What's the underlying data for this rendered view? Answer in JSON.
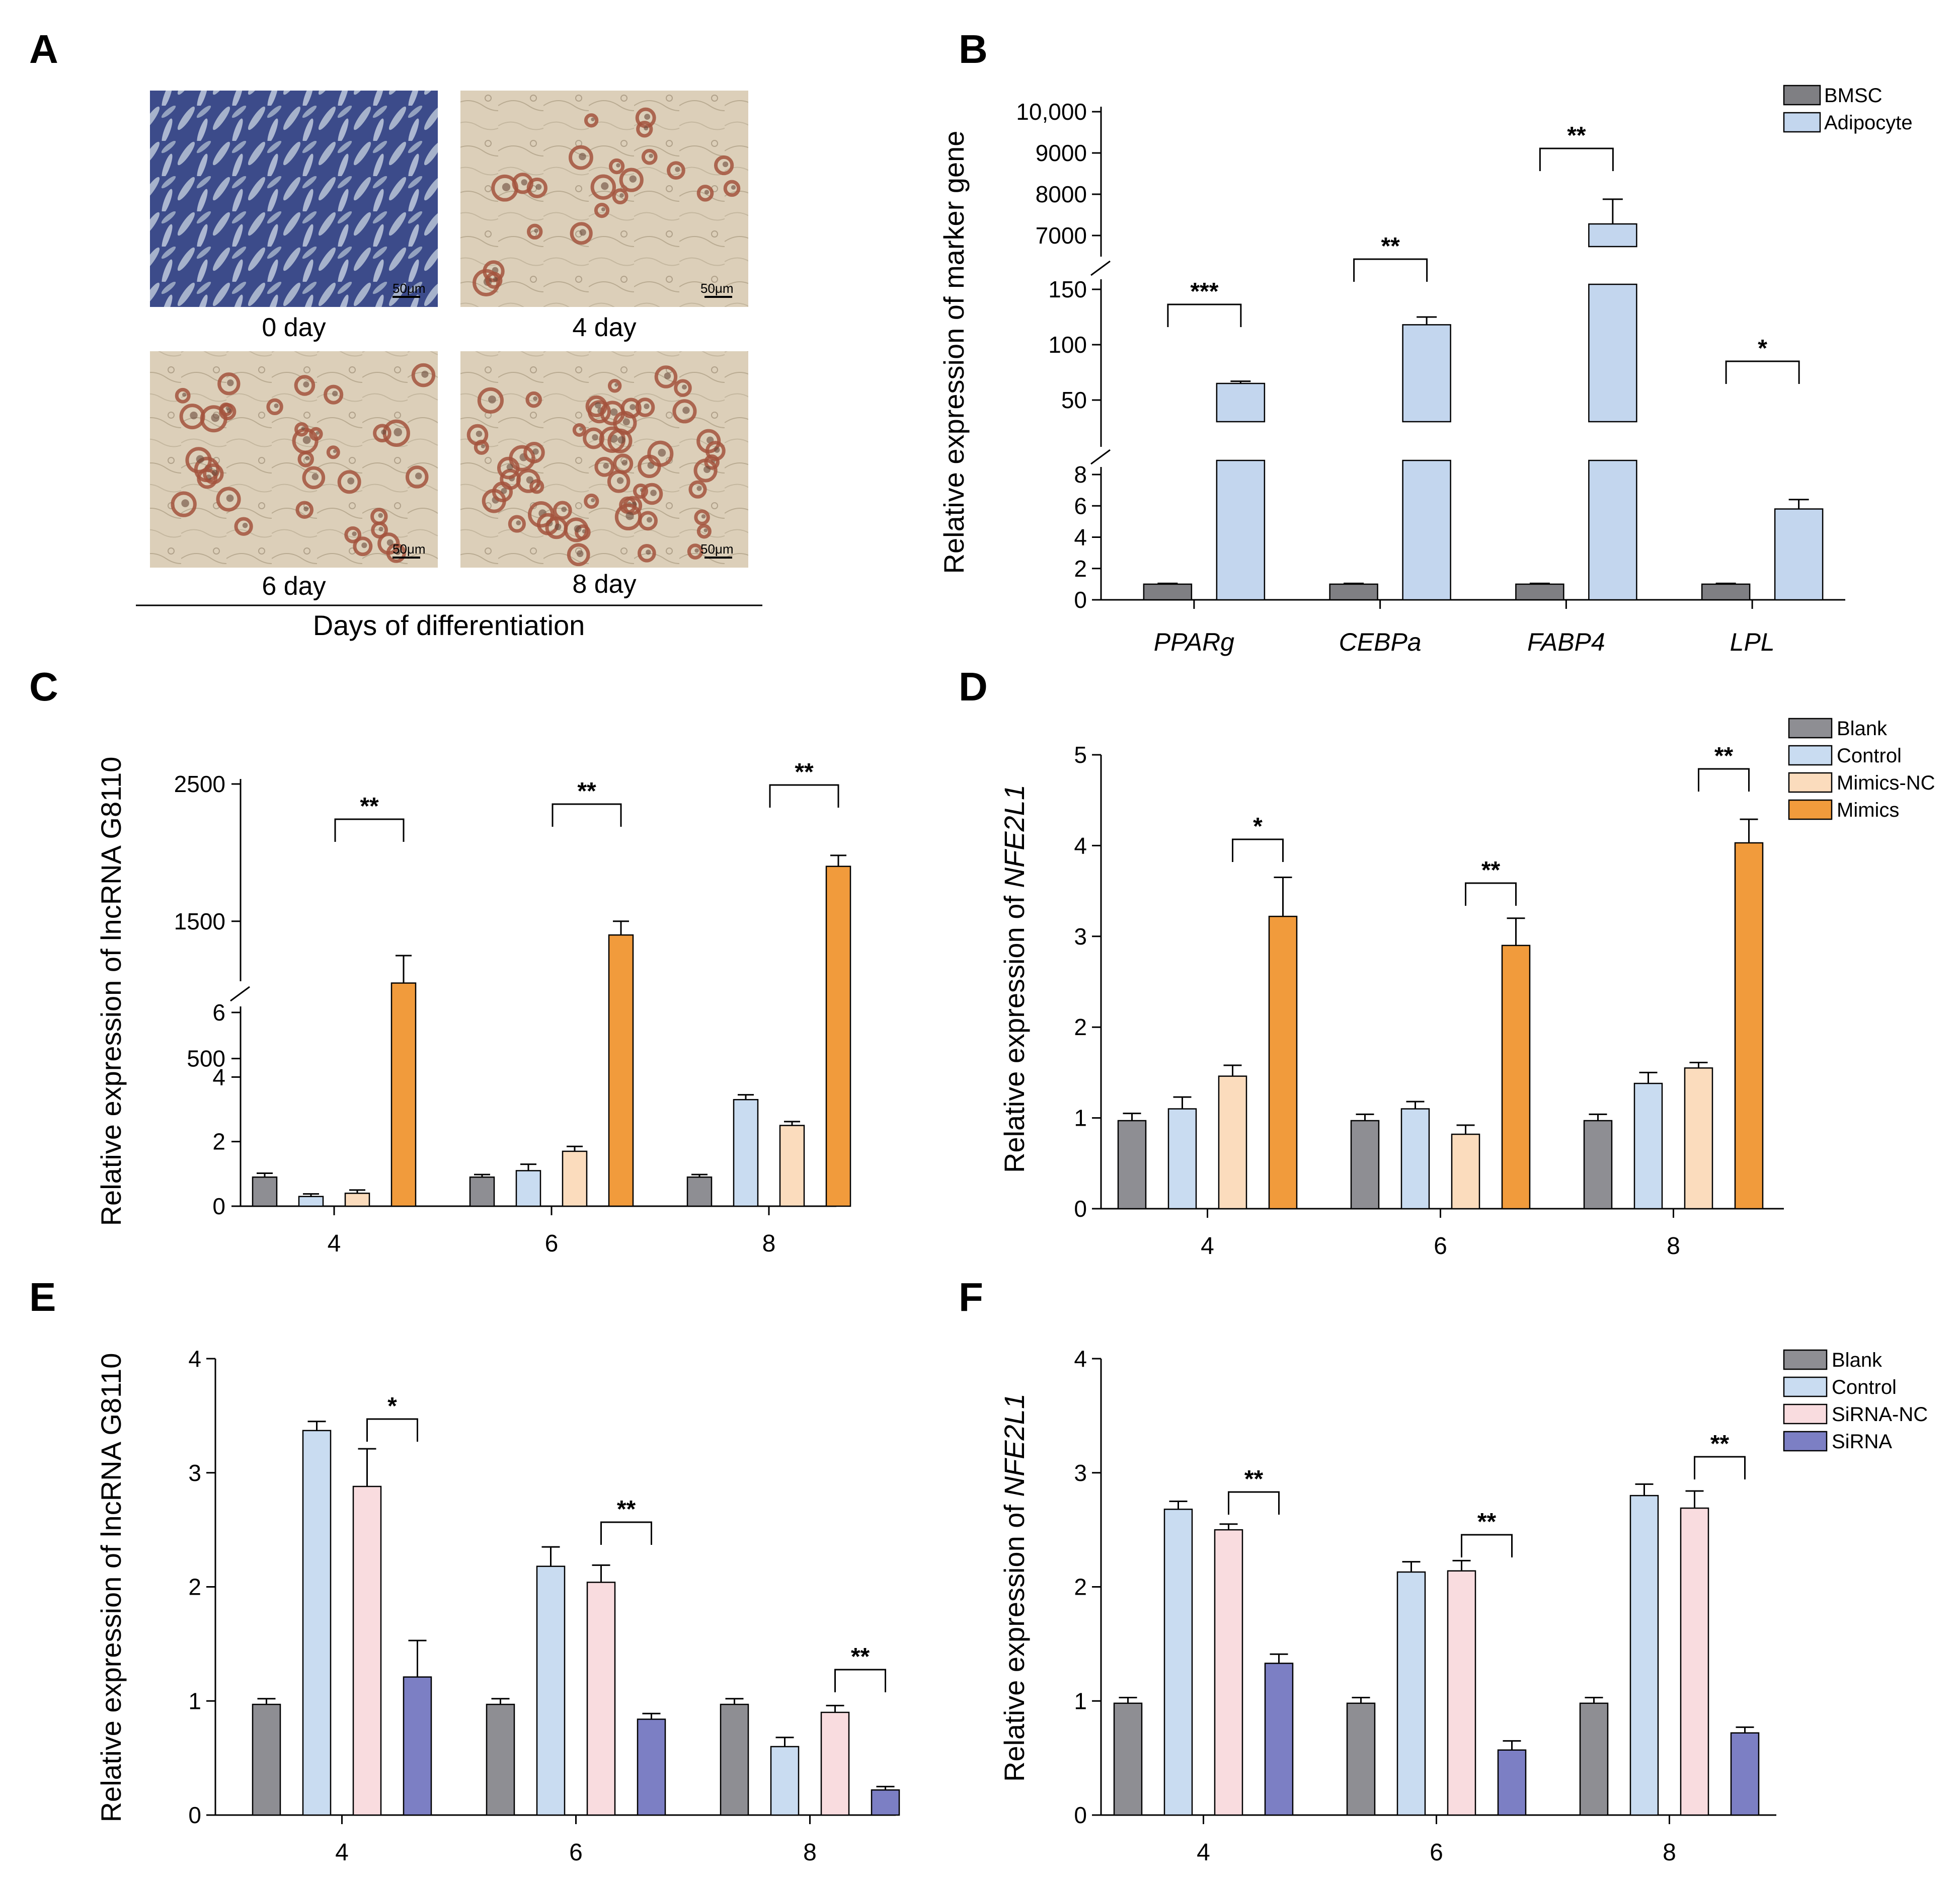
{
  "panel_labels": {
    "A": "A",
    "B": "B",
    "C": "C",
    "D": "D",
    "E": "E",
    "F": "F"
  },
  "colors": {
    "bmsc": "#7f7f83",
    "adipocyte": "#c3d6ee",
    "blank": "#8e8e93",
    "control": "#c9dcf1",
    "mimics_nc": "#fbdcbd",
    "mimics": "#f19b3c",
    "sirna_nc": "#f9dcdf",
    "sirna": "#7c7fc4",
    "micro_0": "#3c4b8a",
    "micro_stain": "#d8cbb4",
    "lipid": "#a3533d"
  },
  "panelA": {
    "images": [
      {
        "caption": "0 day",
        "scale": "50μm"
      },
      {
        "caption": "4 day",
        "scale": "50μm"
      },
      {
        "caption": "6 day",
        "scale": "50μm"
      },
      {
        "caption": "8 day",
        "scale": "50μm"
      }
    ],
    "footer": "Days of differentiation"
  },
  "chart_data": [
    {
      "panel": "B",
      "type": "bar",
      "ylabel": "Relative expression of marker gene",
      "categories": [
        "PPARg",
        "CEBPa",
        "FABP4",
        "LPL"
      ],
      "axis_segments": [
        {
          "range": [
            0,
            8
          ],
          "ticks": [
            "0",
            "2",
            "4",
            "6",
            "8"
          ]
        },
        {
          "range": [
            50,
            150
          ],
          "ticks": [
            "50",
            "100",
            "150"
          ]
        },
        {
          "range": [
            7000,
            10000
          ],
          "ticks": [
            "7000",
            "8000",
            "9000",
            "10,000"
          ]
        }
      ],
      "series": [
        {
          "name": "BMSC",
          "values": [
            1,
            1,
            1,
            1
          ],
          "errors": [
            0.05,
            0.05,
            0.05,
            0.05
          ]
        },
        {
          "name": "Adipocyte",
          "values": [
            65,
            118,
            7280,
            5.8
          ],
          "errors": [
            2,
            7,
            600,
            0.6
          ]
        }
      ],
      "significance": [
        "***",
        "**",
        "**",
        "*"
      ]
    },
    {
      "panel": "C",
      "type": "bar",
      "ylabel": "Relative expression of lncRNA G8110",
      "categories": [
        "4",
        "6",
        "8"
      ],
      "axis_segments": [
        {
          "range": [
            0,
            6
          ],
          "ticks": [
            "0",
            "2",
            "4",
            "6"
          ]
        },
        {
          "range": [
            0,
            2500
          ],
          "ticks": [
            "500",
            "1500",
            "2500"
          ]
        }
      ],
      "series": [
        {
          "name": "Blank",
          "values": [
            0.9,
            0.9,
            0.9
          ],
          "errors": [
            0.12,
            0.08,
            0.08
          ]
        },
        {
          "name": "Control",
          "values": [
            0.3,
            1.1,
            3.3
          ],
          "errors": [
            0.08,
            0.2,
            0.15
          ]
        },
        {
          "name": "Mimics-NC",
          "values": [
            0.4,
            1.7,
            2.5
          ],
          "errors": [
            0.1,
            0.15,
            0.12
          ]
        },
        {
          "name": "Mimics",
          "values": [
            1050,
            1400,
            1900
          ],
          "errors": [
            200,
            100,
            80
          ]
        }
      ],
      "significance": [
        "**",
        "**",
        "**"
      ]
    },
    {
      "panel": "D",
      "type": "bar",
      "ylabel_prefix": "Relative expression  of ",
      "ylabel_gene": "NFE2L1",
      "categories": [
        "4",
        "6",
        "8"
      ],
      "ylim": [
        0,
        5
      ],
      "yticks": [
        "0",
        "1",
        "2",
        "3",
        "4",
        "5"
      ],
      "series": [
        {
          "name": "Blank",
          "values": [
            0.97,
            0.97,
            0.97
          ],
          "errors": [
            0.08,
            0.07,
            0.07
          ]
        },
        {
          "name": "Control",
          "values": [
            1.1,
            1.1,
            1.38
          ],
          "errors": [
            0.13,
            0.08,
            0.12
          ]
        },
        {
          "name": "Mimics-NC",
          "values": [
            1.46,
            0.82,
            1.55
          ],
          "errors": [
            0.12,
            0.1,
            0.06
          ]
        },
        {
          "name": "Mimics",
          "values": [
            3.22,
            2.9,
            4.03
          ],
          "errors": [
            0.43,
            0.3,
            0.26
          ]
        }
      ],
      "significance": [
        "*",
        "**",
        "**"
      ]
    },
    {
      "panel": "E",
      "type": "bar",
      "ylabel": "Relative expression of lncRNA G8110",
      "categories": [
        "4",
        "6",
        "8"
      ],
      "ylim": [
        0,
        4
      ],
      "yticks": [
        "0",
        "1",
        "2",
        "3",
        "4"
      ],
      "series": [
        {
          "name": "Blank",
          "values": [
            0.97,
            0.97,
            0.97
          ],
          "errors": [
            0.05,
            0.05,
            0.05
          ]
        },
        {
          "name": "Control",
          "values": [
            3.37,
            2.18,
            0.6
          ],
          "errors": [
            0.08,
            0.17,
            0.08
          ]
        },
        {
          "name": "SiRNA-NC",
          "values": [
            2.88,
            2.04,
            0.9
          ],
          "errors": [
            0.33,
            0.15,
            0.06
          ]
        },
        {
          "name": "SiRNA",
          "values": [
            1.21,
            0.84,
            0.22
          ],
          "errors": [
            0.32,
            0.05,
            0.03
          ]
        }
      ],
      "significance": [
        "*",
        "**",
        "**"
      ]
    },
    {
      "panel": "F",
      "type": "bar",
      "ylabel_prefix": "Relative expression of ",
      "ylabel_gene": "NFE2L1",
      "categories": [
        "4",
        "6",
        "8"
      ],
      "ylim": [
        0,
        4
      ],
      "yticks": [
        "0",
        "1",
        "2",
        "3",
        "4"
      ],
      "series": [
        {
          "name": "Blank",
          "values": [
            0.98,
            0.98,
            0.98
          ],
          "errors": [
            0.05,
            0.05,
            0.05
          ]
        },
        {
          "name": "Control",
          "values": [
            2.68,
            2.13,
            2.8
          ],
          "errors": [
            0.07,
            0.09,
            0.1
          ]
        },
        {
          "name": "SiRNA-NC",
          "values": [
            2.5,
            2.14,
            2.69
          ],
          "errors": [
            0.05,
            0.09,
            0.15
          ]
        },
        {
          "name": "SiRNA",
          "values": [
            1.33,
            0.57,
            0.72
          ],
          "errors": [
            0.08,
            0.08,
            0.05
          ]
        }
      ],
      "significance": [
        "**",
        "**",
        "**"
      ]
    }
  ]
}
